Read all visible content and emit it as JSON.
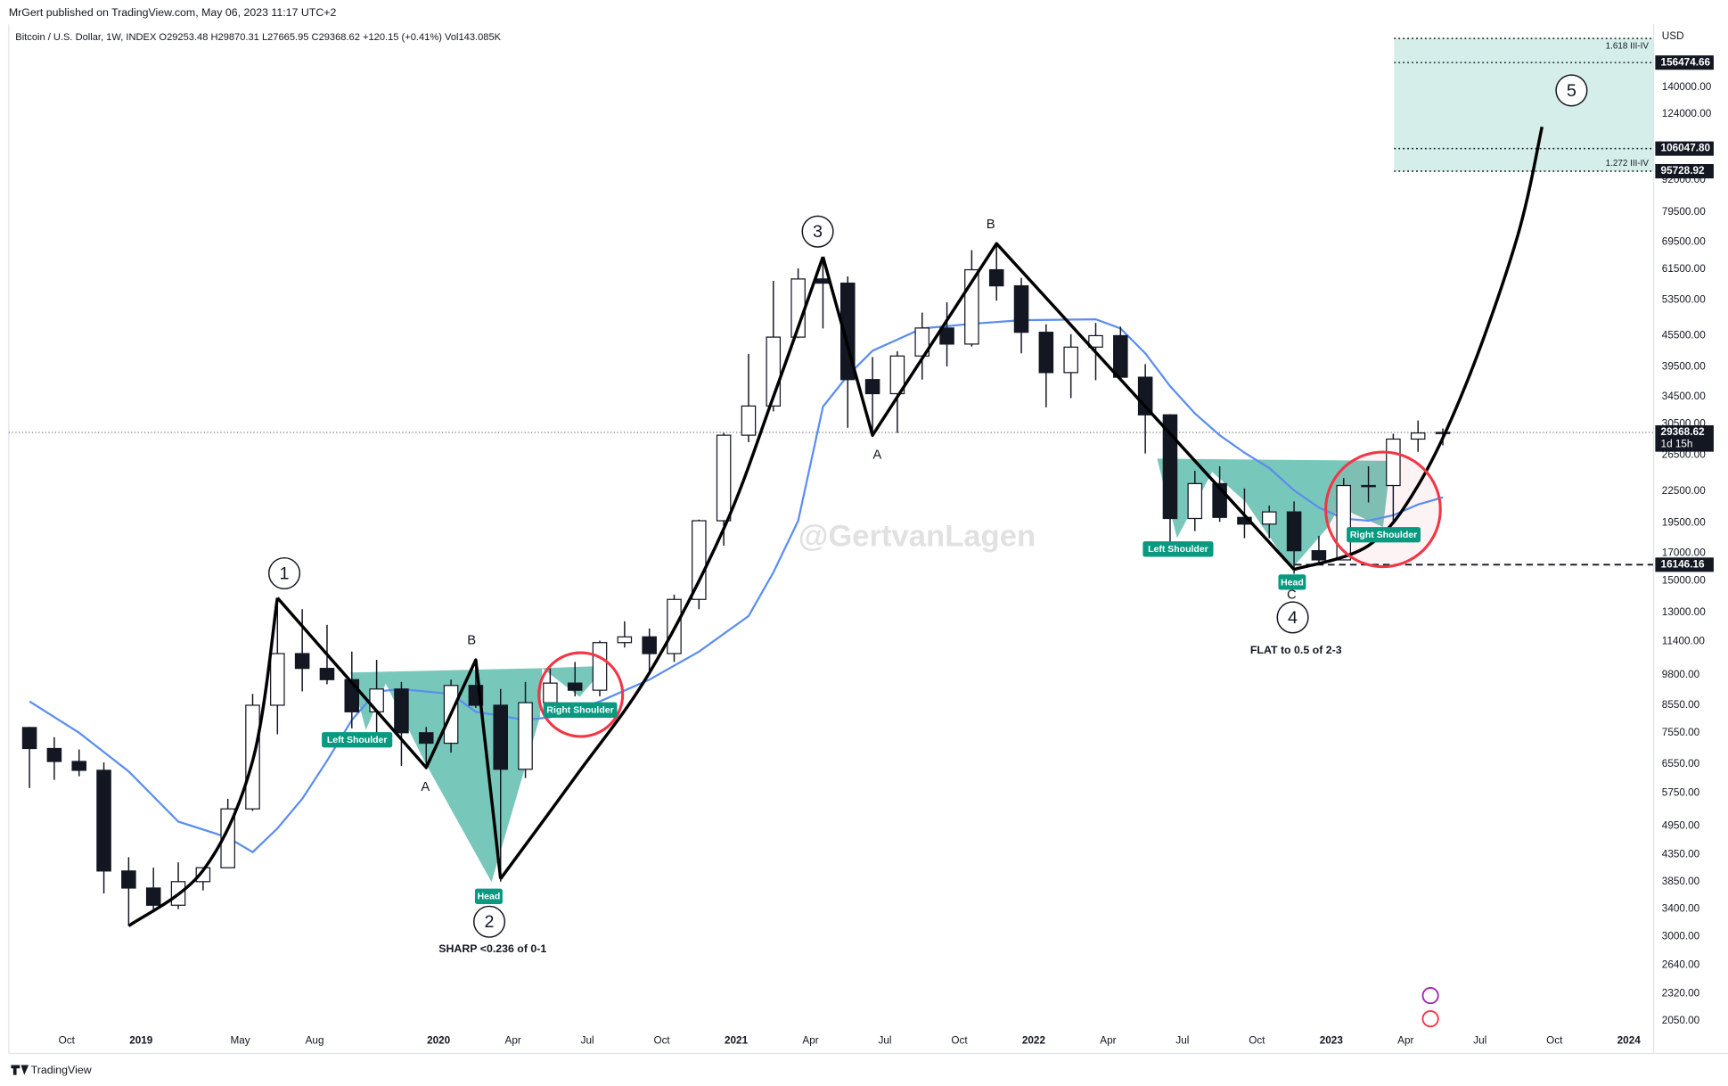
{
  "header": {
    "publisher": "MrGert published on TradingView.com, May 06, 2023 11:17 UTC+2",
    "footer": "TradingView"
  },
  "chart_data": {
    "type": "candlestick",
    "title": "Bitcoin / U.S. Dollar, 1W, INDEX  O29253.48  H29870.31  L27665.95  C29368.62  +120.15 (+0.41%)  Vol143.085K",
    "watermark": "@GertvanLagen",
    "y_unit": "USD",
    "log_scale": true,
    "grid": false,
    "up_color": "#ffffff",
    "down_color": "#131722",
    "x": [
      "2018-08",
      "2018-09",
      "2018-10",
      "2018-11",
      "2018-12",
      "2019-01",
      "2019-02",
      "2019-03",
      "2019-04",
      "2019-05",
      "2019-06",
      "2019-07",
      "2019-08",
      "2019-09",
      "2019-10",
      "2019-11",
      "2019-12",
      "2020-01",
      "2020-02",
      "2020-03",
      "2020-04",
      "2020-05",
      "2020-06",
      "2020-07",
      "2020-08",
      "2020-09",
      "2020-10",
      "2020-11",
      "2020-12",
      "2021-01",
      "2021-02",
      "2021-03",
      "2021-04",
      "2021-05",
      "2021-06",
      "2021-07",
      "2021-08",
      "2021-09",
      "2021-10",
      "2021-11",
      "2021-12",
      "2022-01",
      "2022-02",
      "2022-03",
      "2022-04",
      "2022-05",
      "2022-06",
      "2022-07",
      "2022-08",
      "2022-09",
      "2022-10",
      "2022-11",
      "2022-12",
      "2023-01",
      "2023-02",
      "2023-03",
      "2023-04",
      "2023-05"
    ],
    "open": [
      7730,
      7030,
      6630,
      6370,
      4040,
      3740,
      3460,
      3850,
      4100,
      5350,
      8550,
      10800,
      10100,
      9600,
      8300,
      9200,
      7550,
      7200,
      9350,
      8550,
      6400,
      8650,
      9450,
      9150,
      11350,
      11650,
      10800,
      13800,
      19700,
      29000,
      33100,
      45200,
      58800,
      57700,
      37300,
      35000,
      41500,
      47100,
      43800,
      61300,
      57000,
      46200,
      38500,
      43200,
      45500,
      37700,
      31800,
      19900,
      23300,
      20000,
      19400,
      20500,
      17200,
      16500,
      23100,
      23100,
      28500,
      29300
    ],
    "high": [
      7750,
      7400,
      7000,
      6600,
      4300,
      4100,
      4200,
      4100,
      5600,
      9000,
      13900,
      13200,
      12300,
      10900,
      10500,
      9500,
      7750,
      9600,
      10500,
      9200,
      9500,
      10100,
      10400,
      11450,
      12500,
      12100,
      14100,
      19800,
      29300,
      41900,
      58300,
      61700,
      64800,
      59500,
      41300,
      42400,
      50500,
      52900,
      67000,
      69000,
      59100,
      47900,
      45800,
      48200,
      47400,
      40000,
      31900,
      24700,
      25200,
      22800,
      21100,
      21500,
      18400,
      23900,
      25200,
      29200,
      31000,
      29900
    ],
    "low": [
      5880,
      6100,
      6200,
      3650,
      3150,
      3350,
      3400,
      3700,
      4100,
      5300,
      7500,
      9100,
      9400,
      7700,
      7300,
      6500,
      6400,
      6900,
      8450,
      3850,
      6150,
      8100,
      8900,
      8900,
      11100,
      9850,
      10400,
      13200,
      17600,
      28100,
      32300,
      45000,
      47000,
      30000,
      28800,
      29300,
      37300,
      39600,
      43300,
      53300,
      42000,
      32900,
      34300,
      37200,
      37600,
      26700,
      17600,
      18800,
      19600,
      18200,
      18200,
      15500,
      16300,
      16500,
      21400,
      19600,
      26900,
      27700
    ],
    "close": [
      7030,
      6630,
      6370,
      4040,
      3740,
      3460,
      3850,
      4100,
      5350,
      8550,
      10800,
      10100,
      9600,
      8300,
      9200,
      7550,
      7200,
      9350,
      8550,
      6400,
      8650,
      9450,
      9150,
      11350,
      11650,
      10800,
      13800,
      19700,
      29000,
      33100,
      45200,
      58800,
      57700,
      37300,
      35000,
      41500,
      47100,
      43800,
      61300,
      57000,
      46200,
      38500,
      43200,
      45500,
      37700,
      31800,
      19900,
      23300,
      20000,
      19400,
      20500,
      17200,
      16500,
      23100,
      23100,
      28500,
      29300,
      29370
    ],
    "xlim": [
      "2018-08",
      "2024-02"
    ],
    "ylim": [
      1774,
      186100
    ],
    "xticks": [
      {
        "value": "2018-10",
        "label": "Oct"
      },
      {
        "value": "2019-01",
        "label": "2019"
      },
      {
        "value": "2019-05",
        "label": "May"
      },
      {
        "value": "2019-08",
        "label": "Aug"
      },
      {
        "value": "2020-01",
        "label": "2020"
      },
      {
        "value": "2020-04",
        "label": "Apr"
      },
      {
        "value": "2020-07",
        "label": "Jul"
      },
      {
        "value": "2020-10",
        "label": "Oct"
      },
      {
        "value": "2021-01",
        "label": "2021"
      },
      {
        "value": "2021-04",
        "label": "Apr"
      },
      {
        "value": "2021-07",
        "label": "Jul"
      },
      {
        "value": "2021-10",
        "label": "Oct"
      },
      {
        "value": "2022-01",
        "label": "2022"
      },
      {
        "value": "2022-04",
        "label": "Apr"
      },
      {
        "value": "2022-07",
        "label": "Jul"
      },
      {
        "value": "2022-10",
        "label": "Oct"
      },
      {
        "value": "2023-01",
        "label": "2023"
      },
      {
        "value": "2023-04",
        "label": "Apr"
      },
      {
        "value": "2023-07",
        "label": "Jul"
      },
      {
        "value": "2023-10",
        "label": "Oct"
      },
      {
        "value": "2024-01",
        "label": "2024"
      }
    ],
    "yticks": [
      {
        "value": 2050,
        "label": "2050.00"
      },
      {
        "value": 2320,
        "label": "2320.00"
      },
      {
        "value": 2640,
        "label": "2640.00"
      },
      {
        "value": 3000,
        "label": "3000.00"
      },
      {
        "value": 3400,
        "label": "3400.00"
      },
      {
        "value": 3850,
        "label": "3850.00"
      },
      {
        "value": 4350,
        "label": "4350.00"
      },
      {
        "value": 4950,
        "label": "4950.00"
      },
      {
        "value": 5750,
        "label": "5750.00"
      },
      {
        "value": 6550,
        "label": "6550.00"
      },
      {
        "value": 7550,
        "label": "7550.00"
      },
      {
        "value": 8550,
        "label": "8550.00"
      },
      {
        "value": 9800,
        "label": "9800.00"
      },
      {
        "value": 11400,
        "label": "11400.00"
      },
      {
        "value": 13000,
        "label": "13000.00"
      },
      {
        "value": 15000,
        "label": "15000.00"
      },
      {
        "value": 17000,
        "label": "17000.00"
      },
      {
        "value": 19500,
        "label": "19500.00"
      },
      {
        "value": 22500,
        "label": "22500.00"
      },
      {
        "value": 26500,
        "label": "26500.00"
      },
      {
        "value": 30500,
        "label": "30500.00"
      },
      {
        "value": 34500,
        "label": "34500.00"
      },
      {
        "value": 39500,
        "label": "39500.00"
      },
      {
        "value": 45500,
        "label": "45500.00"
      },
      {
        "value": 53500,
        "label": "53500.00"
      },
      {
        "value": 61500,
        "label": "61500.00"
      },
      {
        "value": 69500,
        "label": "69500.00"
      },
      {
        "value": 79500,
        "label": "79500.00"
      },
      {
        "value": 92000,
        "label": "92000.00"
      },
      {
        "value": 124000,
        "label": "124000.00"
      },
      {
        "value": 140000,
        "label": "140000.00"
      }
    ],
    "moving_average": {
      "color": "#5b8def",
      "x": [
        "2018-08",
        "2018-10",
        "2018-12",
        "2019-02",
        "2019-04",
        "2019-05",
        "2019-06",
        "2019-07",
        "2019-08",
        "2019-09",
        "2019-10",
        "2019-11",
        "2020-01",
        "2020-02",
        "2020-04",
        "2020-05",
        "2020-07",
        "2020-09",
        "2020-11",
        "2021-01",
        "2021-02",
        "2021-03",
        "2021-04",
        "2021-05",
        "2021-06",
        "2021-08",
        "2021-10",
        "2021-12",
        "2022-03",
        "2022-04",
        "2022-05",
        "2022-06",
        "2022-07",
        "2022-08",
        "2022-09",
        "2022-10",
        "2022-11",
        "2022-12",
        "2023-01",
        "2023-02",
        "2023-03",
        "2023-04",
        "2023-05"
      ],
      "values": [
        8700,
        7550,
        6340,
        5050,
        4700,
        4400,
        4900,
        5600,
        6650,
        8000,
        9100,
        9200,
        9000,
        8300,
        8000,
        8100,
        8700,
        9600,
        10900,
        12800,
        15600,
        19700,
        33000,
        38000,
        42500,
        47000,
        48000,
        48800,
        49000,
        47000,
        42000,
        36200,
        32000,
        29000,
        26800,
        25000,
        22600,
        20900,
        19900,
        19700,
        20200,
        21200,
        21900
      ]
    },
    "wave_lines": [
      {
        "color": "#000000",
        "smooth": true,
        "x": [
          "2018-12",
          "2019-03",
          "2019-05",
          "2019-06"
        ],
        "values": [
          3150,
          4050,
          6650,
          13900
        ]
      },
      {
        "color": "#000000",
        "smooth": false,
        "x": [
          "2019-06",
          "2019-12",
          "2020-02",
          "2020-03"
        ],
        "values": [
          13900,
          6450,
          10500,
          3900
        ]
      },
      {
        "color": "#000000",
        "smooth": true,
        "x": [
          "2020-03",
          "2020-06",
          "2020-09",
          "2020-12",
          "2021-02",
          "2021-04"
        ],
        "values": [
          3900,
          6170,
          9900,
          19000,
          34500,
          65000
        ]
      },
      {
        "color": "#000000",
        "smooth": false,
        "x": [
          "2021-04",
          "2021-06",
          "2021-11",
          "2022-11"
        ],
        "values": [
          65000,
          29000,
          69000,
          15800
        ]
      },
      {
        "color": "#000000",
        "smooth": true,
        "x": [
          "2022-11",
          "2023-02",
          "2023-04",
          "2023-06",
          "2023-08",
          "2023-09"
        ],
        "values": [
          15800,
          17600,
          23100,
          37200,
          71000,
          117000
        ]
      }
    ],
    "fib_levels": [
      {
        "value": 174500,
        "label": "1.618 III-IV"
      },
      {
        "value": 95728.92,
        "label": "1.272 III-IV"
      }
    ],
    "price_labels": [
      {
        "value": 156474.66,
        "label": "156474.66",
        "line": "dotted"
      },
      {
        "value": 106047.8,
        "label": "106047.80",
        "line": "dotted"
      },
      {
        "value": 95728.92,
        "label": "95728.92",
        "line": "none"
      },
      {
        "value": 29368.62,
        "label": "29368.62",
        "line": "current"
      },
      {
        "value": 16146.16,
        "label": "16146.16",
        "line": "dashed"
      }
    ],
    "countdown": "1d 15h",
    "annotations": [
      "1",
      "2",
      "3",
      "4",
      "5",
      "A",
      "B",
      "A",
      "B",
      "C",
      "Left Shoulder",
      "Head",
      "Right Shoulder",
      "Left Shoulder",
      "Head",
      "Right Shoulder",
      "SHARP <0.236 of 0-1",
      "FLAT to 0.5 of 2-3"
    ]
  }
}
